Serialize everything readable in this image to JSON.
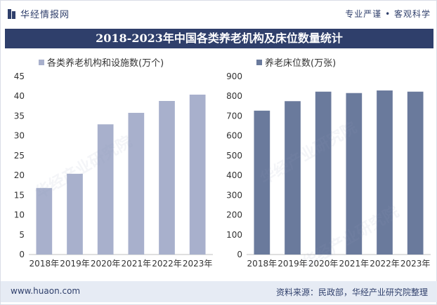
{
  "header": {
    "logo_text": "华经情报网",
    "tagline": "专业严谨 • 客观科学"
  },
  "title": "2018-2023年中国各类养老机构及床位数量统计",
  "footer": {
    "url": "www.huaon.com",
    "source": "资料来源：民政部，华经产业研究院整理"
  },
  "watermark": "华经产业研究院",
  "colors": {
    "brand": "#2f3f6b",
    "left_bar": "#a8b0cc",
    "right_bar": "#6a7a9c"
  },
  "chart_data": [
    {
      "type": "bar",
      "categories": [
        "2018年",
        "2019年",
        "2020年",
        "2021年",
        "2022年",
        "2023年"
      ],
      "series": [
        {
          "name": "各类养老机构和设施数(万个)",
          "values": [
            16.8,
            20.4,
            32.9,
            35.8,
            38.8,
            40.4
          ]
        }
      ],
      "ylim": [
        0,
        45
      ],
      "yticks": [
        0,
        5,
        10,
        15,
        20,
        25,
        30,
        35,
        40,
        45
      ],
      "legend": "top-left",
      "grid": false
    },
    {
      "type": "bar",
      "categories": [
        "2018年",
        "2019年",
        "2020年",
        "2021年",
        "2022年",
        "2023年"
      ],
      "series": [
        {
          "name": "养老床位数(万张)",
          "values": [
            727,
            775,
            823,
            816,
            829,
            823
          ]
        }
      ],
      "ylim": [
        0,
        900
      ],
      "yticks": [
        0,
        100,
        200,
        300,
        400,
        500,
        600,
        700,
        800,
        900
      ],
      "legend": "top-left",
      "grid": false
    }
  ]
}
